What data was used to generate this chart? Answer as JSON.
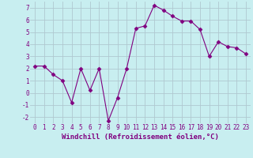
{
  "x": [
    0,
    1,
    2,
    3,
    4,
    5,
    6,
    7,
    8,
    9,
    10,
    11,
    12,
    13,
    14,
    15,
    16,
    17,
    18,
    19,
    20,
    21,
    22,
    23
  ],
  "y": [
    2.2,
    2.2,
    1.5,
    1.0,
    -0.8,
    2.0,
    0.2,
    2.0,
    -2.3,
    -0.4,
    2.0,
    5.3,
    5.5,
    7.2,
    6.8,
    6.3,
    5.9,
    5.9,
    5.2,
    3.0,
    4.2,
    3.8,
    3.7,
    3.2
  ],
  "line_color": "#800080",
  "marker": "D",
  "marker_size": 2.5,
  "bg_color": "#c8eef0",
  "grid_color": "#b0c8d0",
  "xlabel": "Windchill (Refroidissement éolien,°C)",
  "xlim": [
    -0.5,
    23.5
  ],
  "ylim": [
    -2.5,
    7.5
  ],
  "xticks": [
    0,
    1,
    2,
    3,
    4,
    5,
    6,
    7,
    8,
    9,
    10,
    11,
    12,
    13,
    14,
    15,
    16,
    17,
    18,
    19,
    20,
    21,
    22,
    23
  ],
  "yticks": [
    -2,
    -1,
    0,
    1,
    2,
    3,
    4,
    5,
    6,
    7
  ],
  "tick_fontsize": 5.5,
  "xlabel_fontsize": 6.5,
  "label_color": "#800080"
}
